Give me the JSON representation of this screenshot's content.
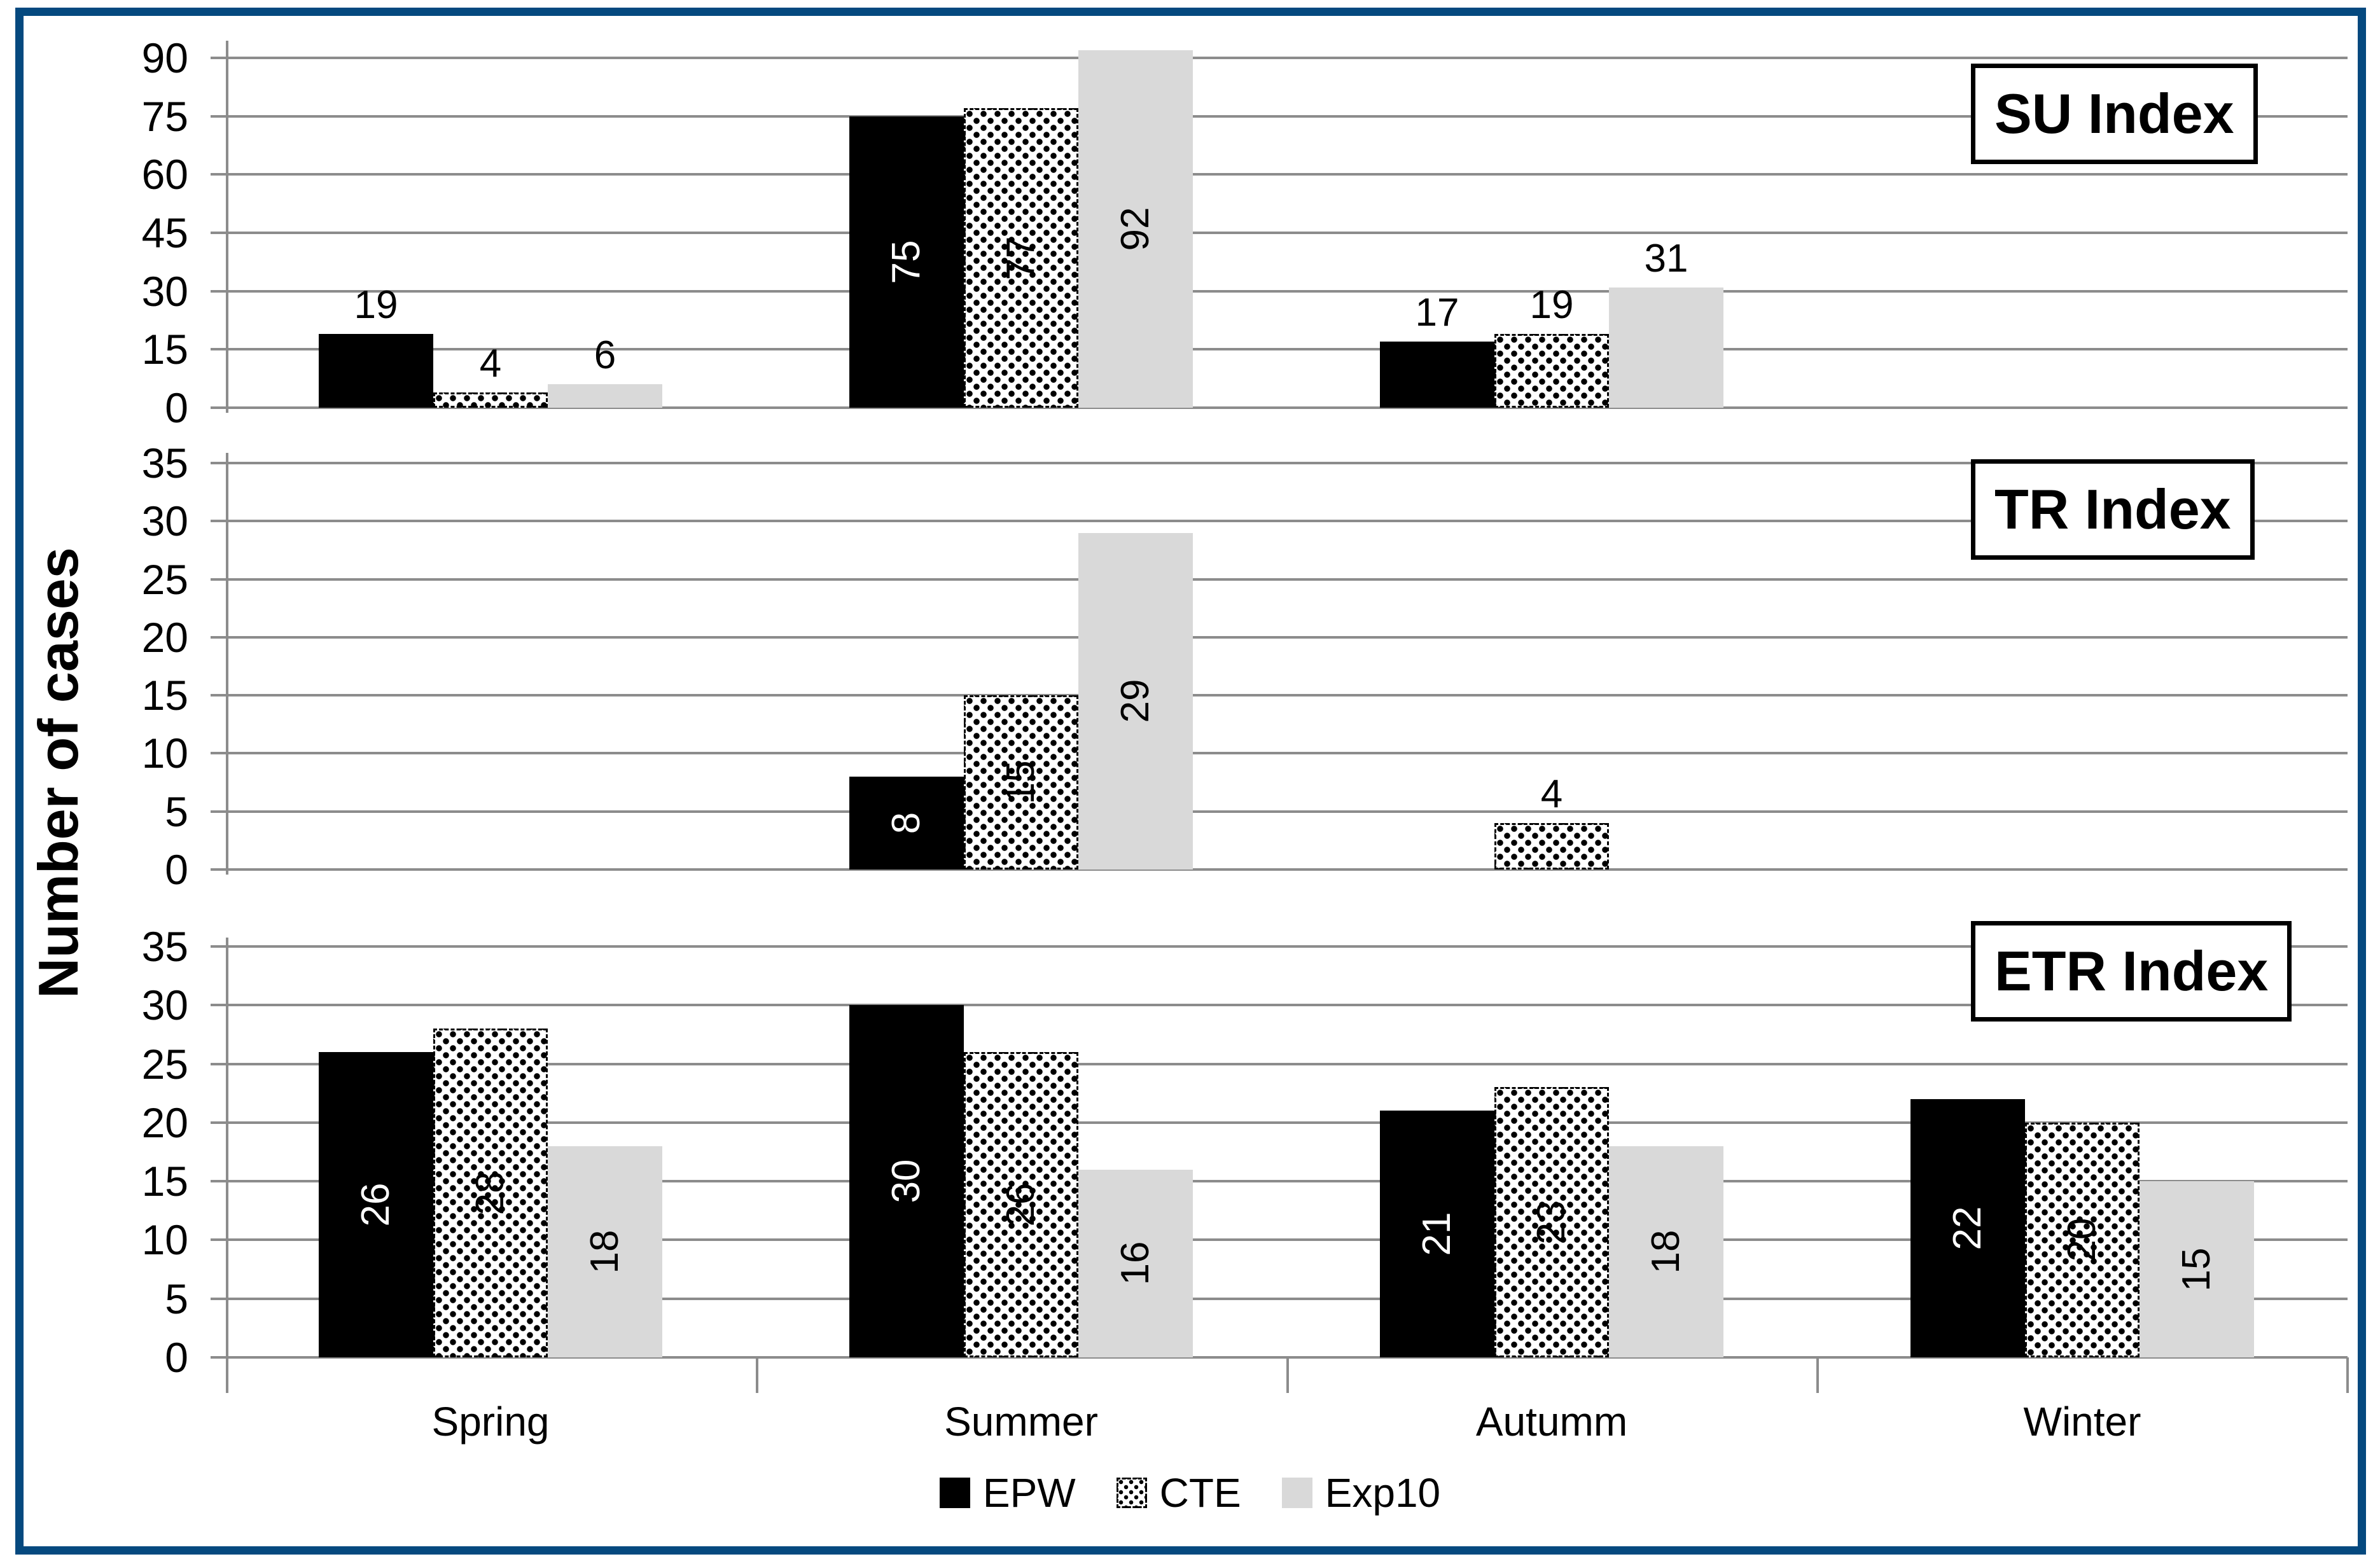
{
  "figure": {
    "ylabel": "Number of cases",
    "frame_color": "#05497F",
    "background": "#FFFFFF"
  },
  "chart_data": [
    {
      "type": "bar",
      "title": "SU Index",
      "categories": [
        "Spring",
        "Summer",
        "Autumm",
        "Winter"
      ],
      "ylabel": "Number of cases",
      "ylim": [
        0,
        90
      ],
      "ytick_step": 15,
      "grid": true,
      "series": [
        {
          "name": "EPW",
          "values": [
            19,
            75,
            17,
            null
          ],
          "label_placement": [
            "above",
            "inside",
            "above",
            null
          ]
        },
        {
          "name": "CTE",
          "values": [
            4,
            77,
            19,
            null
          ],
          "label_placement": [
            "above",
            "inside",
            "above",
            null
          ]
        },
        {
          "name": "Exp10",
          "values": [
            6,
            92,
            31,
            null
          ],
          "label_placement": [
            "above",
            "inside",
            "above",
            null
          ]
        }
      ]
    },
    {
      "type": "bar",
      "title": "TR Index",
      "categories": [
        "Spring",
        "Summer",
        "Autumm",
        "Winter"
      ],
      "ylabel": "Number of cases",
      "ylim": [
        0,
        35
      ],
      "ytick_step": 5,
      "grid": true,
      "series": [
        {
          "name": "EPW",
          "values": [
            null,
            8,
            null,
            null
          ],
          "label_placement": [
            null,
            "inside",
            null,
            null
          ]
        },
        {
          "name": "CTE",
          "values": [
            null,
            15,
            4,
            null
          ],
          "label_placement": [
            null,
            "inside",
            "above",
            null
          ]
        },
        {
          "name": "Exp10",
          "values": [
            null,
            29,
            null,
            null
          ],
          "label_placement": [
            null,
            "inside",
            null,
            null
          ]
        }
      ]
    },
    {
      "type": "bar",
      "title": "ETR Index",
      "categories": [
        "Spring",
        "Summer",
        "Autumm",
        "Winter"
      ],
      "ylabel": "Number of cases",
      "ylim": [
        0,
        35
      ],
      "ytick_step": 5,
      "grid": true,
      "series": [
        {
          "name": "EPW",
          "values": [
            26,
            30,
            21,
            22
          ],
          "label_placement": [
            "inside",
            "inside",
            "inside",
            "inside"
          ]
        },
        {
          "name": "CTE",
          "values": [
            28,
            26,
            23,
            20
          ],
          "label_placement": [
            "inside",
            "inside",
            "inside",
            "inside"
          ]
        },
        {
          "name": "Exp10",
          "values": [
            18,
            16,
            18,
            15
          ],
          "label_placement": [
            "inside",
            "inside",
            "inside",
            "inside"
          ]
        }
      ]
    }
  ],
  "x_axis": {
    "labels": [
      "Spring",
      "Summer",
      "Autumm",
      "Winter"
    ]
  },
  "legend": {
    "position": "bottom-center",
    "items": [
      {
        "label": "EPW",
        "swatch": "solid-black"
      },
      {
        "label": "CTE",
        "swatch": "dot-pattern"
      },
      {
        "label": "Exp10",
        "swatch": "light-gray"
      }
    ]
  },
  "colors": {
    "epw": "#000000",
    "cte_dots": "#000000",
    "cte_background": "#FFFFFF",
    "exp10": "#D9D9D9",
    "gridline": "#8C8C8C",
    "frame": "#05497F"
  }
}
